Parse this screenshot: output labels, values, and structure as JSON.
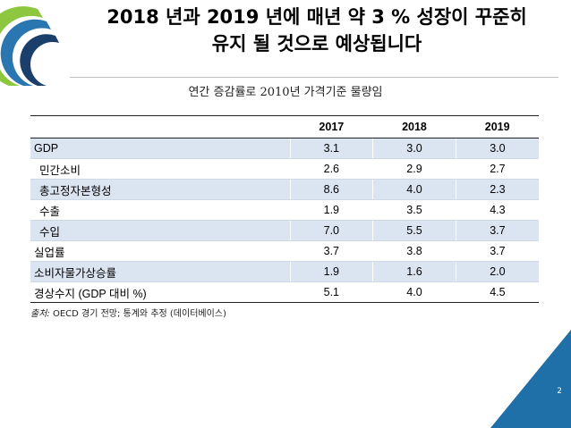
{
  "header": {
    "title_line1": "2018 년과 2019 년에 매년 약 3 % 성장이 꾸준히",
    "title_line2": "유지 될 것으로 예상됩니다",
    "subtitle": "연간 증감률로 2010년 가격기준 물량임"
  },
  "table": {
    "columns": [
      "2017",
      "2018",
      "2019"
    ],
    "rows": [
      {
        "label": "GDP",
        "values": [
          "3.1",
          "3.0",
          "3.0"
        ]
      },
      {
        "label": "민간소비",
        "values": [
          "2.6",
          "2.9",
          "2.7"
        ]
      },
      {
        "label": "총고정자본형성",
        "values": [
          "8.6",
          "4.0",
          "2.3"
        ]
      },
      {
        "label": "수출",
        "values": [
          "1.9",
          "3.5",
          "4.3"
        ]
      },
      {
        "label": "수입",
        "values": [
          "7.0",
          "5.5",
          "3.7"
        ]
      },
      {
        "label": "실업률",
        "values": [
          "3.7",
          "3.8",
          "3.7"
        ]
      },
      {
        "label": "소비자물가상승률",
        "values": [
          "1.9",
          "1.6",
          "2.0"
        ]
      },
      {
        "label": "경상수지 (GDP 대비 %)",
        "values": [
          "5.1",
          "4.0",
          "4.5"
        ]
      }
    ]
  },
  "source": {
    "label": "출처:",
    "text": " OECD 경기 전망; 통계와 추정 (데이터베이스)"
  },
  "footer": {
    "page_number": "2"
  },
  "colors": {
    "accent": "#1f6fa8",
    "row_shade": "#dbe4f1",
    "logo_green": "#8dc63f",
    "logo_blue": "#2a76b0"
  }
}
